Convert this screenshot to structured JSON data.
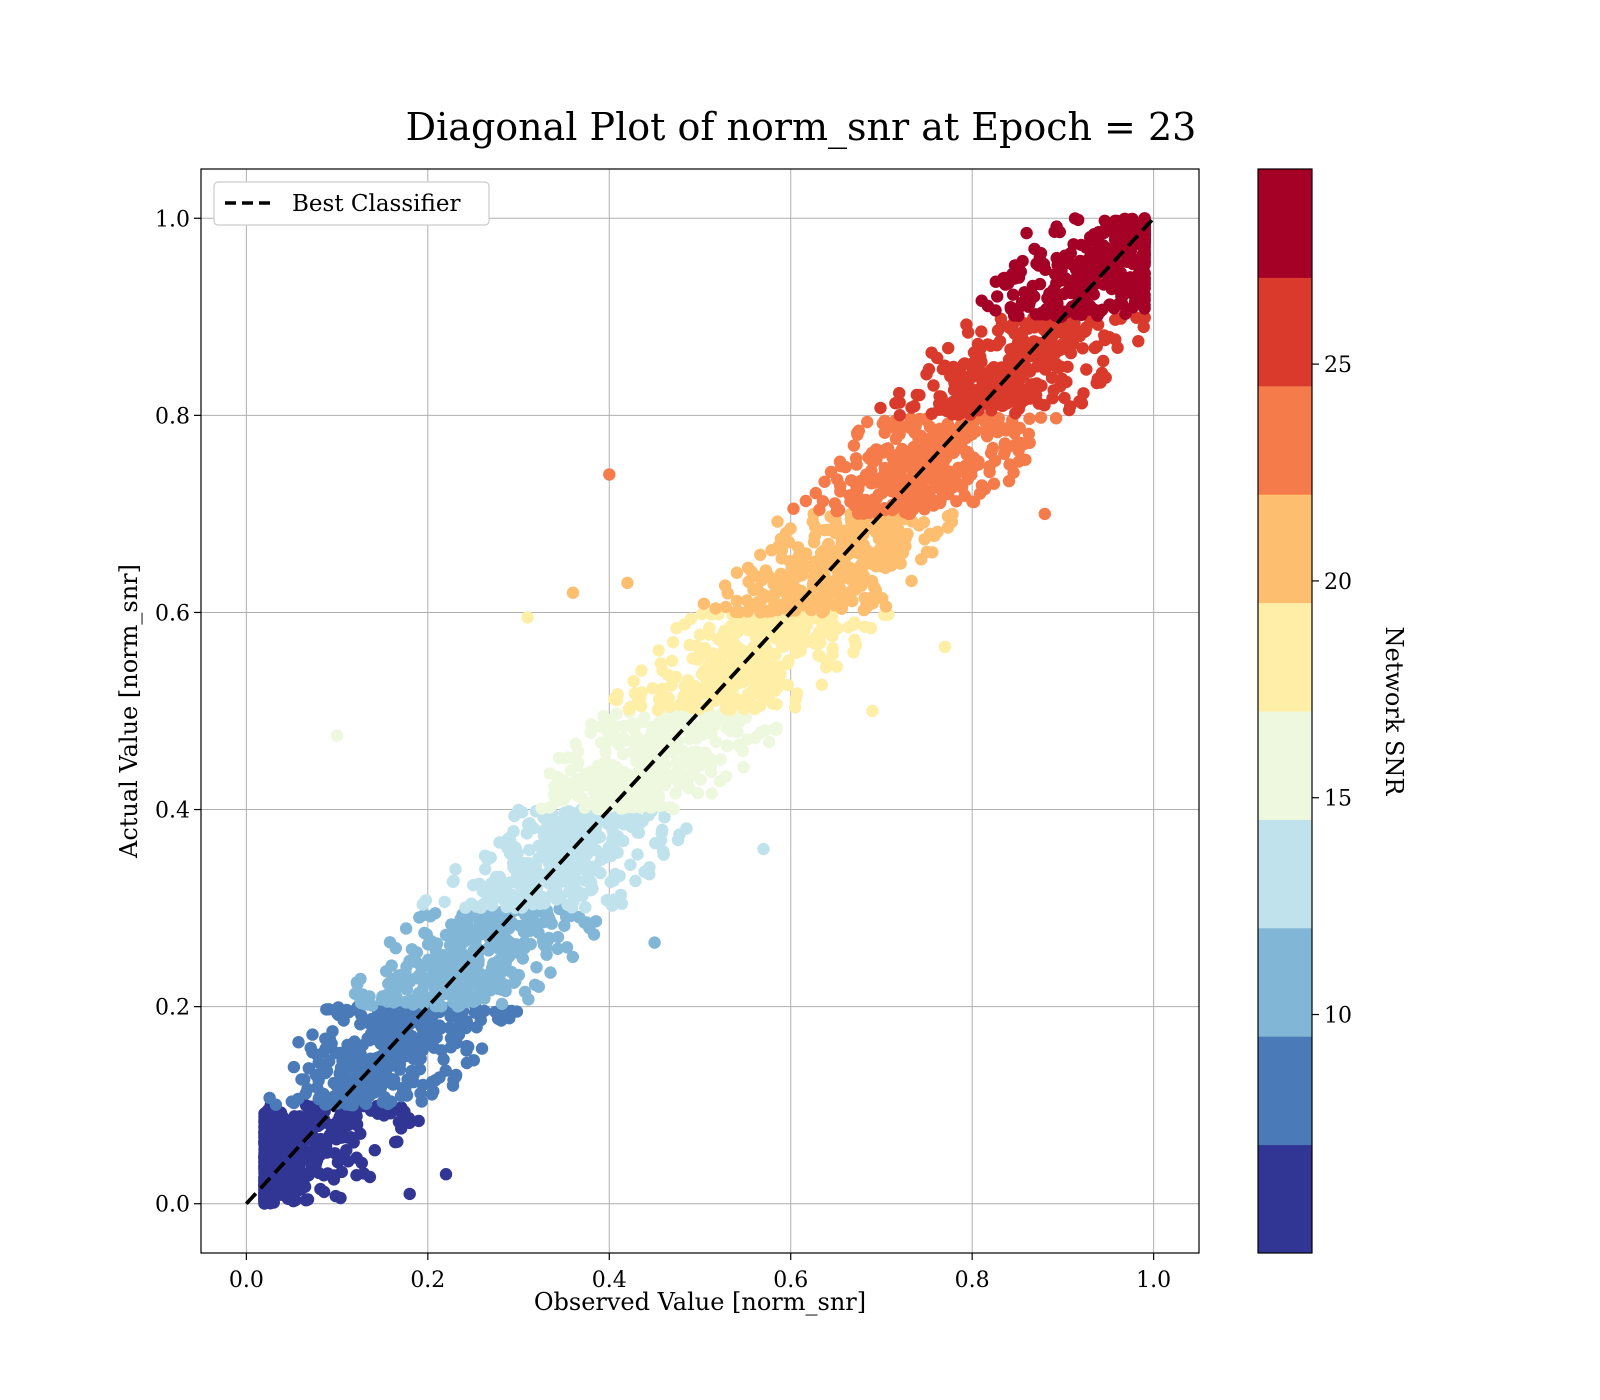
{
  "chart_data": {
    "type": "scatter",
    "title": "Diagonal Plot of norm_snr at Epoch = 23",
    "xlabel": "Observed Value [norm_snr]",
    "ylabel": "Actual Value [norm_snr]",
    "xlim": [
      -0.05,
      1.05
    ],
    "ylim": [
      -0.05,
      1.05
    ],
    "xticks": [
      "0.0",
      "0.2",
      "0.4",
      "0.6",
      "0.8",
      "1.0"
    ],
    "yticks": [
      "0.0",
      "0.2",
      "0.4",
      "0.6",
      "0.8",
      "1.0"
    ],
    "grid": true,
    "legend": {
      "placement": "top-left",
      "entries": [
        {
          "label": "Best Classifier",
          "style": "dashed",
          "color": "#000000"
        }
      ]
    },
    "reference_line": {
      "label": "Best Classifier",
      "x": [
        0.0,
        1.0
      ],
      "y": [
        0.0,
        1.0
      ]
    },
    "colorbar": {
      "label": "Network SNR",
      "range": [
        4.5,
        29.5
      ],
      "ticks": [
        "10",
        "15",
        "20",
        "25"
      ],
      "bins": [
        {
          "y_range": [
            0.0,
            0.1
          ],
          "snr_range": [
            4.5,
            7.0
          ],
          "color": "#313695"
        },
        {
          "y_range": [
            0.1,
            0.2
          ],
          "snr_range": [
            7.0,
            9.5
          ],
          "color": "#4a7ab7"
        },
        {
          "y_range": [
            0.2,
            0.3
          ],
          "snr_range": [
            9.5,
            12.0
          ],
          "color": "#82b6d6"
        },
        {
          "y_range": [
            0.3,
            0.4
          ],
          "snr_range": [
            12.0,
            14.5
          ],
          "color": "#bfe2ec"
        },
        {
          "y_range": [
            0.4,
            0.5
          ],
          "snr_range": [
            14.5,
            17.0
          ],
          "color": "#eef8df"
        },
        {
          "y_range": [
            0.5,
            0.6
          ],
          "snr_range": [
            17.0,
            19.5
          ],
          "color": "#feeea6"
        },
        {
          "y_range": [
            0.6,
            0.7
          ],
          "snr_range": [
            19.5,
            22.0
          ],
          "color": "#fdbe70"
        },
        {
          "y_range": [
            0.7,
            0.8
          ],
          "snr_range": [
            22.0,
            24.5
          ],
          "color": "#f57b4a"
        },
        {
          "y_range": [
            0.8,
            0.9
          ],
          "snr_range": [
            24.5,
            27.0
          ],
          "color": "#d93a2b"
        },
        {
          "y_range": [
            0.9,
            1.0
          ],
          "snr_range": [
            27.0,
            29.5
          ],
          "color": "#a50026"
        }
      ]
    },
    "series": [
      {
        "distribution": "dense bands along the diagonal; x spreads roughly ±0.15 around y",
        "x_min": 0.02,
        "x_max": 0.99,
        "y_min": 0.0,
        "y_max": 1.0,
        "outliers": [
          [
            0.4,
            0.74
          ],
          [
            0.1,
            0.475
          ],
          [
            0.31,
            0.595
          ],
          [
            0.57,
            0.36
          ],
          [
            0.69,
            0.5
          ],
          [
            0.77,
            0.565
          ],
          [
            0.88,
            0.7
          ],
          [
            0.81,
            0.885
          ],
          [
            0.45,
            0.265
          ],
          [
            0.22,
            0.03
          ],
          [
            0.18,
            0.01
          ],
          [
            0.36,
            0.62
          ],
          [
            0.86,
            0.985
          ],
          [
            0.42,
            0.63
          ]
        ]
      }
    ]
  }
}
